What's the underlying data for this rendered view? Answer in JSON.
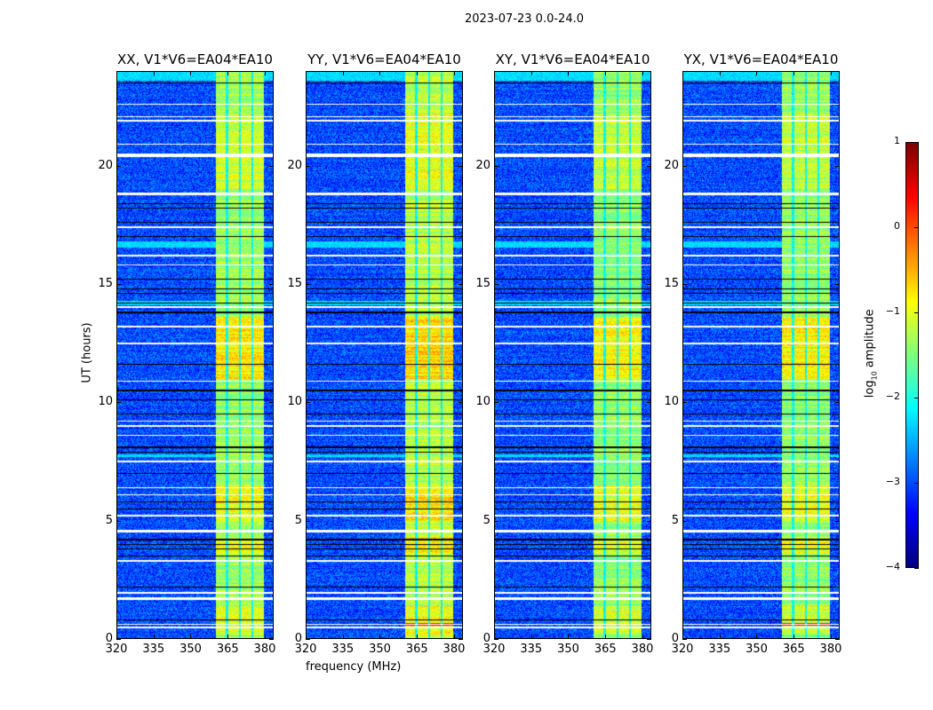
{
  "suptitle": "2023-07-23 0.0-24.0",
  "chart_data": {
    "type": "heatmap",
    "panels": [
      {
        "title": "XX, V1*V6=EA04*EA10",
        "polarization": "XX",
        "band_boost": 0.0
      },
      {
        "title": "YY, V1*V6=EA04*EA10",
        "polarization": "YY",
        "band_boost": 0.15
      },
      {
        "title": "XY, V1*V6=EA04*EA10",
        "polarization": "XY",
        "band_boost": -0.05
      },
      {
        "title": "YX, V1*V6=EA04*EA10",
        "polarization": "YX",
        "band_boost": -0.05
      }
    ],
    "xlabel": "frequency (MHz)",
    "ylabel": "UT (hours)",
    "xlim": [
      320,
      383.6
    ],
    "ylim": [
      0,
      24
    ],
    "xticks": [
      320,
      335,
      350,
      365,
      380
    ],
    "yticks": [
      0,
      5,
      10,
      15,
      20
    ],
    "colorbar": {
      "label_main": "log",
      "label_sub": "10",
      "label_rest": " amplitude",
      "range": [
        -4,
        1
      ],
      "ticks": [
        1,
        0,
        -1,
        -2,
        -3,
        -4
      ],
      "tick_labels": [
        "1",
        "0",
        "−1",
        "−2",
        "−3",
        "−4"
      ],
      "colormap": "jet"
    },
    "signal_band_mhz": [
      360.3,
      379.8
    ],
    "subband_gaps_mhz": [
      [
        364.3,
        365.2
      ],
      [
        369.6,
        370.4
      ],
      [
        374.6,
        375.4
      ]
    ],
    "background_log_amplitude": -3.0,
    "band_log_amplitude": -1.35,
    "bright_intervals_hours": [
      [
        11.0,
        13.6,
        0.55
      ],
      [
        5.0,
        6.5,
        0.45
      ],
      [
        3.6,
        4.3,
        0.4
      ],
      [
        19.0,
        22.2,
        0.25
      ],
      [
        0.2,
        1.4,
        0.3
      ]
    ],
    "flagged_white_hours": [
      [
        0.45,
        0.52
      ],
      [
        0.6,
        0.65
      ],
      [
        1.65,
        1.75
      ],
      [
        1.9,
        1.98
      ],
      [
        3.28,
        3.34
      ],
      [
        4.5,
        4.6
      ],
      [
        5.18,
        5.24
      ],
      [
        6.08,
        6.13
      ],
      [
        6.38,
        6.42
      ],
      [
        7.45,
        7.52
      ],
      [
        8.58,
        8.63
      ],
      [
        8.98,
        9.03
      ],
      [
        9.18,
        9.22
      ],
      [
        10.88,
        10.93
      ],
      [
        12.45,
        12.52
      ],
      [
        13.18,
        13.22
      ],
      [
        14.0,
        14.05
      ],
      [
        15.78,
        15.83
      ],
      [
        16.18,
        16.22
      ],
      [
        17.38,
        17.43
      ],
      [
        18.75,
        18.88
      ],
      [
        20.35,
        20.5
      ],
      [
        20.88,
        20.93
      ],
      [
        21.88,
        21.93
      ],
      [
        22.05,
        22.1
      ],
      [
        22.58,
        22.63
      ]
    ],
    "black_gap_hours": [
      0.8,
      2.2,
      3.5,
      3.8,
      4.0,
      4.2,
      5.5,
      5.8,
      7.0,
      7.9,
      8.1,
      9.5,
      10.1,
      10.5,
      11.6,
      13.8,
      14.2,
      14.6,
      14.8,
      15.2,
      17.0,
      17.6,
      18.2,
      18.4,
      23.5
    ],
    "cyan_rows_hours": [
      [
        23.6,
        24.0
      ],
      [
        16.55,
        16.8
      ],
      [
        14.1,
        14.3
      ],
      [
        7.7,
        7.8
      ]
    ],
    "hot_rows_hours": [
      [
        0.58,
        0.66
      ]
    ]
  }
}
